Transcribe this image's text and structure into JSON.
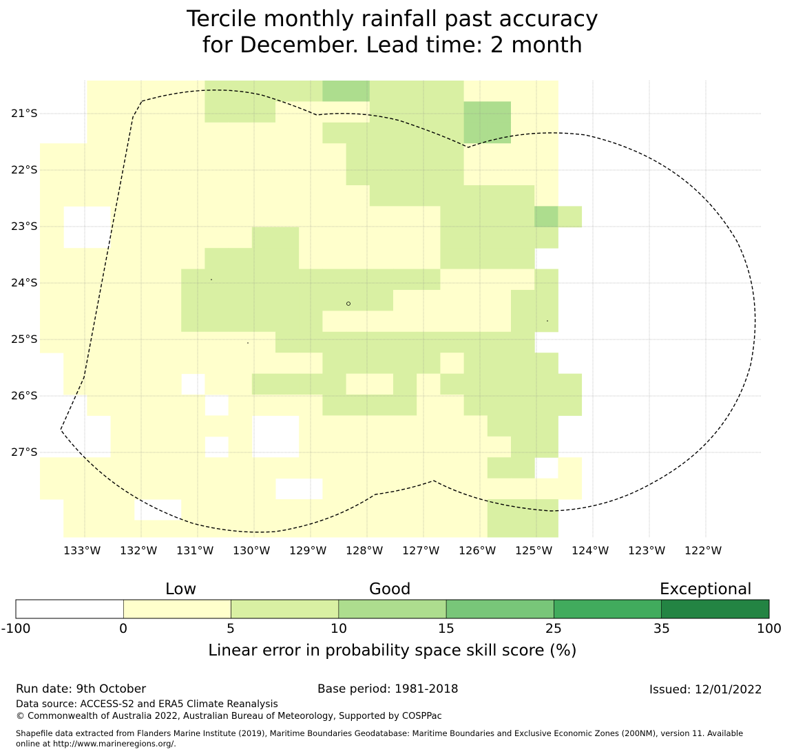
{
  "title": {
    "line1": "Tercile monthly rainfall past accuracy",
    "line2": "for December. Lead time: 2 month"
  },
  "map": {
    "lat_labels": [
      "21°S",
      "22°S",
      "23°S",
      "24°S",
      "25°S",
      "26°S",
      "27°S"
    ],
    "lon_labels": [
      "133°W",
      "132°W",
      "131°W",
      "130°W",
      "129°W",
      "128°W",
      "127°W",
      "126°W",
      "125°W",
      "124°W",
      "123°W",
      "122°W"
    ],
    "grid_rows": [
      "__11111222223322221111",
      "__11111222111122223311",
      "__11111111112222223311",
      "1111111111111222221111",
      "1111111111111222221111",
      "1111111111111122222221",
      "1__11111111111111222232",
      "1__1111112211111122222",
      "111111122221111112222",
      "1111112222222222211112",
      "1111112222222221111122",
      "1111112222221111111122",
      "111111111122222222222",
      "_111111111112222212222",
      "_11111_1122221121222222",
      "__11111_111122221122222",
      "___111111__11111111222",
      "___1111_1__11111111122",
      "111111111111111111122_1",
      "1111111111__11111111111",
      "_111__1111111111111222",
      "_111111111111111111222"
    ]
  },
  "colorbar": {
    "heading_low": "Low",
    "heading_good": "Good",
    "heading_exceptional": "Exceptional",
    "colors": [
      "#ffffff",
      "#ffffcc",
      "#d9f0a3",
      "#addd8e",
      "#78c679",
      "#41ab5d",
      "#238443"
    ],
    "ticks": [
      "-100",
      "0",
      "5",
      "10",
      "15",
      "25",
      "35",
      "100"
    ],
    "title": "Linear error in probability space skill score (%)"
  },
  "footer": {
    "run_date": "Run date: 9th October",
    "base_period": "Base period: 1981-2018",
    "issued": "Issued: 12/01/2022",
    "data_source": "Data source: ACCESS-S2 and ERA5 Climate Reanalysis",
    "copyright": "© Commonwealth of Australia 2022, Australian Bureau of Meteorology, Supported by COSPPac",
    "shapefile_line1": "Shapefile data extracted from Flanders Marine Institute (2019), Maritime Boundaries Geodatabase: Maritime Boundaries and Exclusive Economic Zones (200NM), version 11. Available",
    "shapefile_line2": "online at http://www.marineregions.org/."
  }
}
